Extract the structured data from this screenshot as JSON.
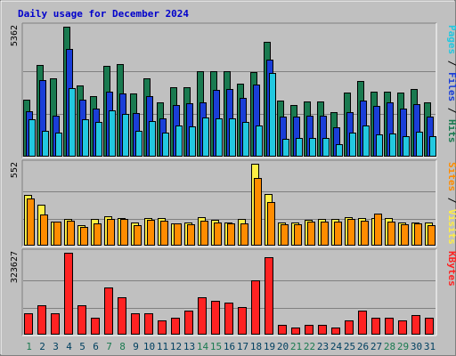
{
  "chart_data": {
    "type": "bar",
    "title": "Daily usage for December 2024",
    "categories": [
      "1",
      "2",
      "3",
      "4",
      "5",
      "6",
      "7",
      "8",
      "9",
      "10",
      "11",
      "12",
      "13",
      "14",
      "15",
      "16",
      "17",
      "18",
      "19",
      "20",
      "21",
      "22",
      "23",
      "24",
      "25",
      "26",
      "27",
      "28",
      "29",
      "30",
      "31"
    ],
    "weekend_days": [
      1,
      7,
      8,
      14,
      15,
      21,
      22,
      28,
      29
    ],
    "weekend_color": "#1a7a50",
    "weekday_color": "#004060",
    "panels": [
      {
        "name": "traffic-hits",
        "ymax": 5362,
        "ymax_label": "5362",
        "right_label": [
          {
            "text": "Pages",
            "color": "#22c8e0"
          },
          {
            "text": " / ",
            "color": "#000000"
          },
          {
            "text": "Files",
            "color": "#1a3ed8"
          },
          {
            "text": " / ",
            "color": "#000000"
          },
          {
            "text": "Hits",
            "color": "#1a7a50"
          }
        ],
        "series": [
          {
            "name": "Hits",
            "color": "#1a7a50",
            "values": [
              2340,
              3780,
              3250,
              5362,
              2940,
              2500,
              3750,
              3820,
              2620,
              3250,
              2250,
              2880,
              2860,
              3530,
              3520,
              3530,
              3000,
              3490,
              4740,
              2300,
              2140,
              2280,
              2280,
              1820,
              2640,
              3140,
              2680,
              2680,
              2660,
              2790,
              2240
            ]
          },
          {
            "name": "Files",
            "color": "#1a3ed8",
            "values": [
              1860,
              3160,
              1680,
              4440,
              2340,
              1980,
              2680,
              2600,
              1800,
              2480,
              1580,
              2140,
              2220,
              2230,
              2770,
              2800,
              2440,
              2980,
              3990,
              1640,
              1660,
              1680,
              1680,
              1230,
              1850,
              2320,
              2100,
              2230,
              2000,
              2170,
              1670
            ]
          },
          {
            "name": "Pages",
            "color": "#22c8e0",
            "values": [
              1540,
              1080,
              980,
              2830,
              1560,
              1440,
              1900,
              1750,
              1050,
              1470,
              1000,
              1280,
              1240,
              1600,
              1570,
              1570,
              1450,
              1290,
              3470,
              740,
              770,
              780,
              780,
              530,
              980,
              1280,
              930,
              960,
              860,
              1010,
              860
            ]
          }
        ]
      },
      {
        "name": "visits-sites",
        "ymax": 552,
        "ymax_label": "552",
        "right_label": [
          {
            "text": "Sites",
            "color": "#ff8c00"
          },
          {
            "text": " / ",
            "color": "#000000"
          },
          {
            "text": "Visits",
            "color": "#ffee44"
          }
        ],
        "series": [
          {
            "name": "Visits",
            "color": "#ffee44",
            "values": [
              340,
              278,
              160,
              178,
              137,
              178,
              196,
              184,
              155,
              184,
              184,
              147,
              155,
              189,
              172,
              155,
              178,
              552,
              350,
              155,
              155,
              172,
              178,
              178,
              191,
              185,
              184,
              184,
              155,
              155,
              155
            ]
          },
          {
            "name": "Sites",
            "color": "#ff8c00",
            "values": [
              315,
              212,
              160,
              170,
              127,
              150,
              178,
              178,
              140,
              176,
              168,
              147,
              146,
              165,
              155,
              147,
              150,
              455,
              295,
              144,
              145,
              163,
              160,
              162,
              182,
              169,
              215,
              164,
              146,
              147,
              137
            ]
          }
        ]
      },
      {
        "name": "kbytes",
        "ymax": 323627,
        "ymax_label": "323627",
        "right_label": [
          {
            "text": "KBytes",
            "color": "#ff2222"
          }
        ],
        "series": [
          {
            "name": "KBytes",
            "color": "#ff2222",
            "values": [
              85000,
              115000,
              85000,
              323627,
              115000,
              68000,
              185000,
              148000,
              85000,
              85000,
              57000,
              68000,
              96000,
              148000,
              135000,
              125000,
              108000,
              215000,
              305000,
              38000,
              28000,
              38000,
              40000,
              28000,
              57000,
              96000,
              68000,
              68000,
              57000,
              77000,
              68000
            ]
          }
        ]
      }
    ]
  }
}
